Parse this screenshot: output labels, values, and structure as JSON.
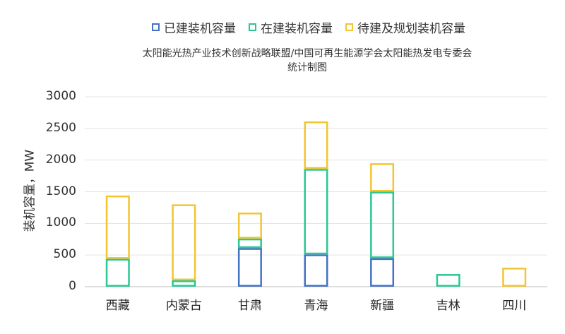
{
  "chart_data": {
    "type": "bar",
    "stacked": true,
    "subtitle_lines": [
      "太阳能光热产业技术创新战略联盟/中国可再生能源学会太阳能热发电专委会",
      "统计制图"
    ],
    "xlabel": "",
    "ylabel": "装机容量，MW",
    "ylim": [
      0,
      3000
    ],
    "yticks": [
      0,
      500,
      1000,
      1500,
      2000,
      2500,
      3000
    ],
    "grid": true,
    "legend_position": "top",
    "categories": [
      "西藏",
      "内蒙古",
      "甘肃",
      "青海",
      "新疆",
      "吉林",
      "四川"
    ],
    "series": [
      {
        "name": "已建装机容量",
        "color": "#4472C4",
        "values": [
          0,
          0,
          610,
          510,
          450,
          0,
          0
        ]
      },
      {
        "name": "在建装机容量",
        "color": "#2BC795",
        "values": [
          440,
          100,
          150,
          1350,
          1050,
          200,
          0
        ]
      },
      {
        "name": "待建及规划装机容量",
        "color": "#F2C531",
        "values": [
          1000,
          1200,
          410,
          750,
          450,
          0,
          300
        ]
      }
    ]
  }
}
